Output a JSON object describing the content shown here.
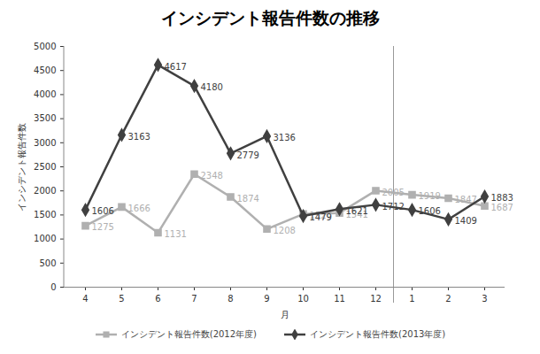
{
  "chart_data": {
    "type": "line",
    "title": "インシデント報告件数の推移",
    "x_label": "月",
    "y_label": "インシデント報告件数",
    "categories": [
      "4",
      "5",
      "6",
      "7",
      "8",
      "9",
      "10",
      "11",
      "12",
      "1",
      "2",
      "3"
    ],
    "series": [
      {
        "name": "インシデント報告件数(2012年度)",
        "color": "#b0b0b0",
        "marker": "square",
        "values": [
          1275,
          1666,
          1131,
          2348,
          1874,
          1208,
          1520,
          1541,
          2005,
          1919,
          1847,
          1687
        ]
      },
      {
        "name": "インシデント報告件数(2013年度)",
        "color": "#404040",
        "marker": "diamond",
        "values": [
          1606,
          3163,
          4617,
          4180,
          2779,
          3136,
          1479,
          1621,
          1712,
          1606,
          1409,
          1883
        ]
      }
    ],
    "ylim": [
      0,
      5000
    ],
    "yticks": [
      0,
      500,
      1000,
      1500,
      2000,
      2500,
      3000,
      3500,
      4000,
      4500,
      5000
    ],
    "grid": false,
    "legend": "bottom",
    "data_labels": true
  }
}
